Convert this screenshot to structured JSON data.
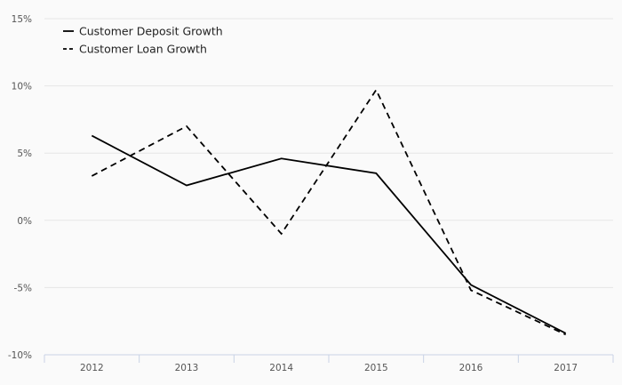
{
  "colors": {
    "background": "#fafafa",
    "gridline": "#e6e6e6",
    "axis": "#c9d3e6",
    "series_line": "#000000",
    "text": "#555555"
  },
  "chart_data": {
    "type": "line",
    "title": "",
    "xlabel": "",
    "ylabel": "",
    "categories": [
      "2012",
      "2013",
      "2014",
      "2015",
      "2016",
      "2017"
    ],
    "ylim": [
      -10,
      15
    ],
    "yticks": [
      -10,
      -5,
      0,
      5,
      10,
      15
    ],
    "ytick_labels": [
      "-10%",
      "-5%",
      "0%",
      "5%",
      "10%",
      "15%"
    ],
    "grid": true,
    "legend_position": "top-left",
    "series": [
      {
        "name": "Customer Deposit Growth",
        "style": "solid",
        "values": [
          6.3,
          2.6,
          4.6,
          3.5,
          -4.8,
          -8.4
        ]
      },
      {
        "name": "Customer Loan Growth",
        "style": "dashed",
        "values": [
          3.3,
          7.0,
          -1.0,
          9.7,
          -5.2,
          -8.5
        ]
      }
    ]
  }
}
